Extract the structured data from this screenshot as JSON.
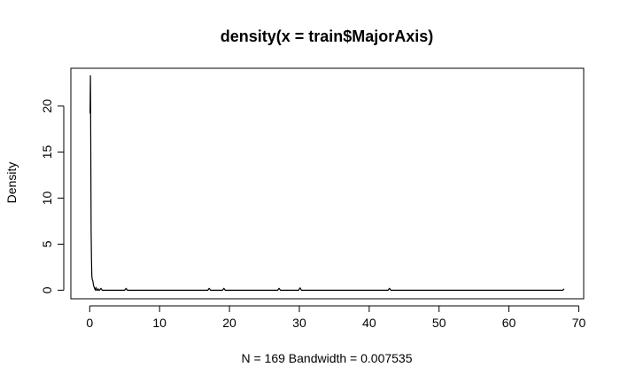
{
  "chart_data": {
    "type": "line",
    "title": "density(x = train$MajorAxis)",
    "xlabel": "N = 169   Bandwidth = 0.007535",
    "ylabel": "Density",
    "xlim": [
      -2.7,
      70.7
    ],
    "ylim": [
      -0.93,
      24.1
    ],
    "x_ticks": [
      0,
      10,
      20,
      30,
      40,
      50,
      60,
      70
    ],
    "y_ticks": [
      0,
      5,
      10,
      15,
      20
    ],
    "grid": false,
    "legend": "none",
    "series": [
      {
        "color": "#000000",
        "x": [
          0.05,
          0.1,
          0.12,
          0.15,
          0.18,
          0.2,
          0.25,
          0.3,
          0.35,
          0.45,
          0.55,
          0.7,
          0.8,
          0.9,
          1.0,
          1.1,
          1.2,
          1.3,
          1.4,
          1.6,
          1.8,
          2.0,
          5.0,
          5.2,
          5.4,
          16.9,
          17.1,
          17.3,
          19.0,
          19.2,
          19.4,
          26.9,
          27.1,
          27.3,
          29.9,
          30.1,
          30.3,
          42.7,
          42.9,
          43.1,
          67.7,
          67.9
        ],
        "y": [
          19.2,
          23.3,
          21.5,
          16.0,
          10.5,
          6.5,
          3.5,
          1.6,
          1.2,
          1.0,
          0.5,
          0.2,
          0.0,
          0.3,
          0.0,
          0.0,
          0.15,
          0.0,
          0.0,
          0.2,
          0.0,
          0.0,
          0.0,
          0.2,
          0.0,
          0.0,
          0.2,
          0.0,
          0.0,
          0.2,
          0.0,
          0.0,
          0.2,
          0.0,
          0.0,
          0.25,
          0.0,
          0.0,
          0.2,
          0.0,
          0.0,
          0.15
        ]
      }
    ]
  }
}
